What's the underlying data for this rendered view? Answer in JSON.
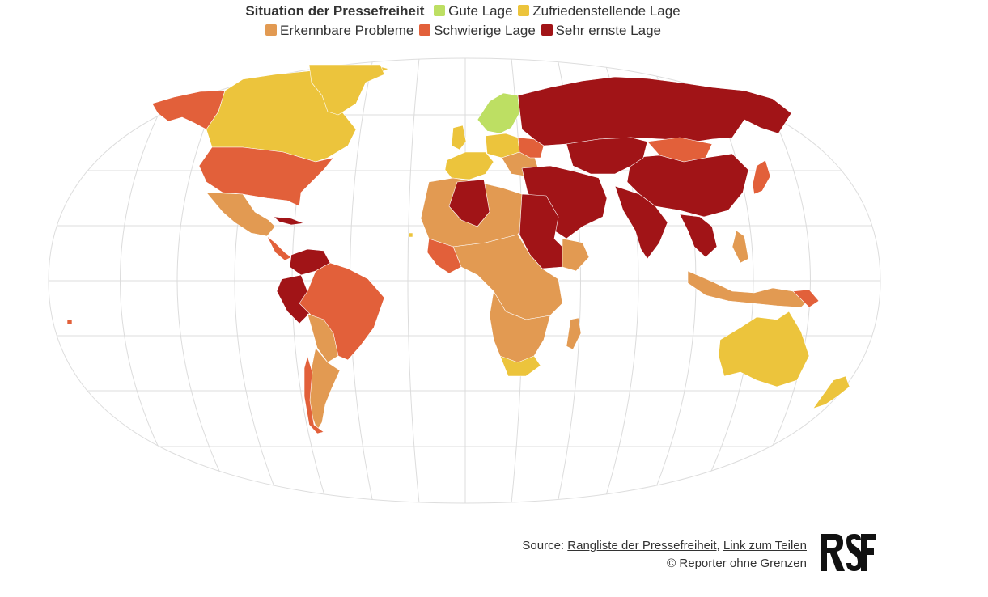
{
  "legend": {
    "title": "Situation der Pressefreiheit",
    "items": [
      {
        "label": "Gute Lage",
        "color": "#bddf63"
      },
      {
        "label": "Zufriedenstellende Lage",
        "color": "#ecc43c"
      },
      {
        "label": "Erkennbare Probleme",
        "color": "#e29a52"
      },
      {
        "label": "Schwierige Lage",
        "color": "#e2603a"
      },
      {
        "label": "Sehr ernste Lage",
        "color": "#a11417"
      }
    ]
  },
  "map": {
    "projection": "robinson",
    "graticule": true
  },
  "footer": {
    "source_prefix": "Source: ",
    "source_link": "Rangliste der Pressefreiheit",
    "separator": ", ",
    "share_link": "Link zum Teilen",
    "copyright": "© Reporter ohne Grenzen"
  },
  "logo": {
    "text": "RSF"
  }
}
